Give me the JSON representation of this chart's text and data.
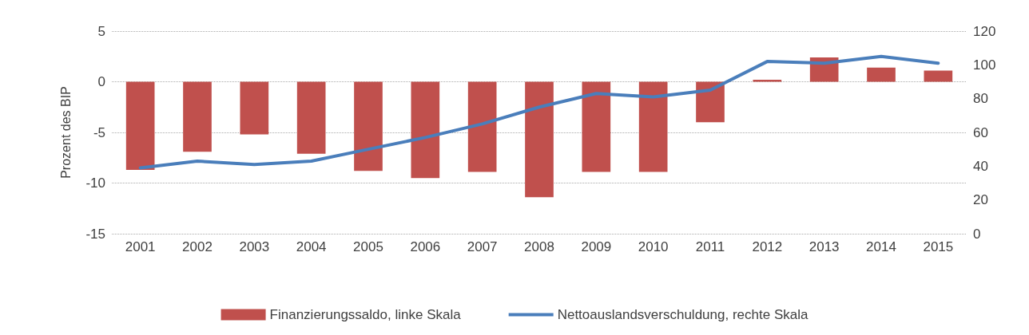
{
  "chart_data": {
    "type": "bar",
    "ylabel": "Prozent des BIP",
    "categories": [
      "2001",
      "2002",
      "2003",
      "2004",
      "2005",
      "2006",
      "2007",
      "2008",
      "2009",
      "2010",
      "2011",
      "2012",
      "2013",
      "2014",
      "2015"
    ],
    "series": [
      {
        "name": "Finanzierungssaldo, linke Skala",
        "color": "#c0504d",
        "values": [
          -8.7,
          -6.9,
          -5.2,
          -7.1,
          -8.8,
          -9.5,
          -8.9,
          -11.4,
          -8.9,
          -8.9,
          -4.0,
          0.2,
          2.4,
          1.4,
          1.1
        ]
      },
      {
        "name": "Nettoauslandsverschuldung, rechte Skala",
        "type": "line",
        "axis": "y2",
        "color": "#4a7ebb",
        "values": [
          39,
          43,
          41,
          43,
          50,
          57,
          65,
          75,
          83,
          81,
          85,
          102,
          101,
          105,
          101
        ]
      }
    ],
    "ylim": [
      -15,
      5
    ],
    "yticks": [
      -15,
      -10,
      -5,
      0,
      5
    ],
    "y2lim": [
      0,
      120
    ],
    "y2ticks": [
      0,
      20,
      40,
      60,
      80,
      100,
      120
    ],
    "grid": "y",
    "legend": "bottom",
    "marker": "none",
    "line_style": "solid"
  }
}
